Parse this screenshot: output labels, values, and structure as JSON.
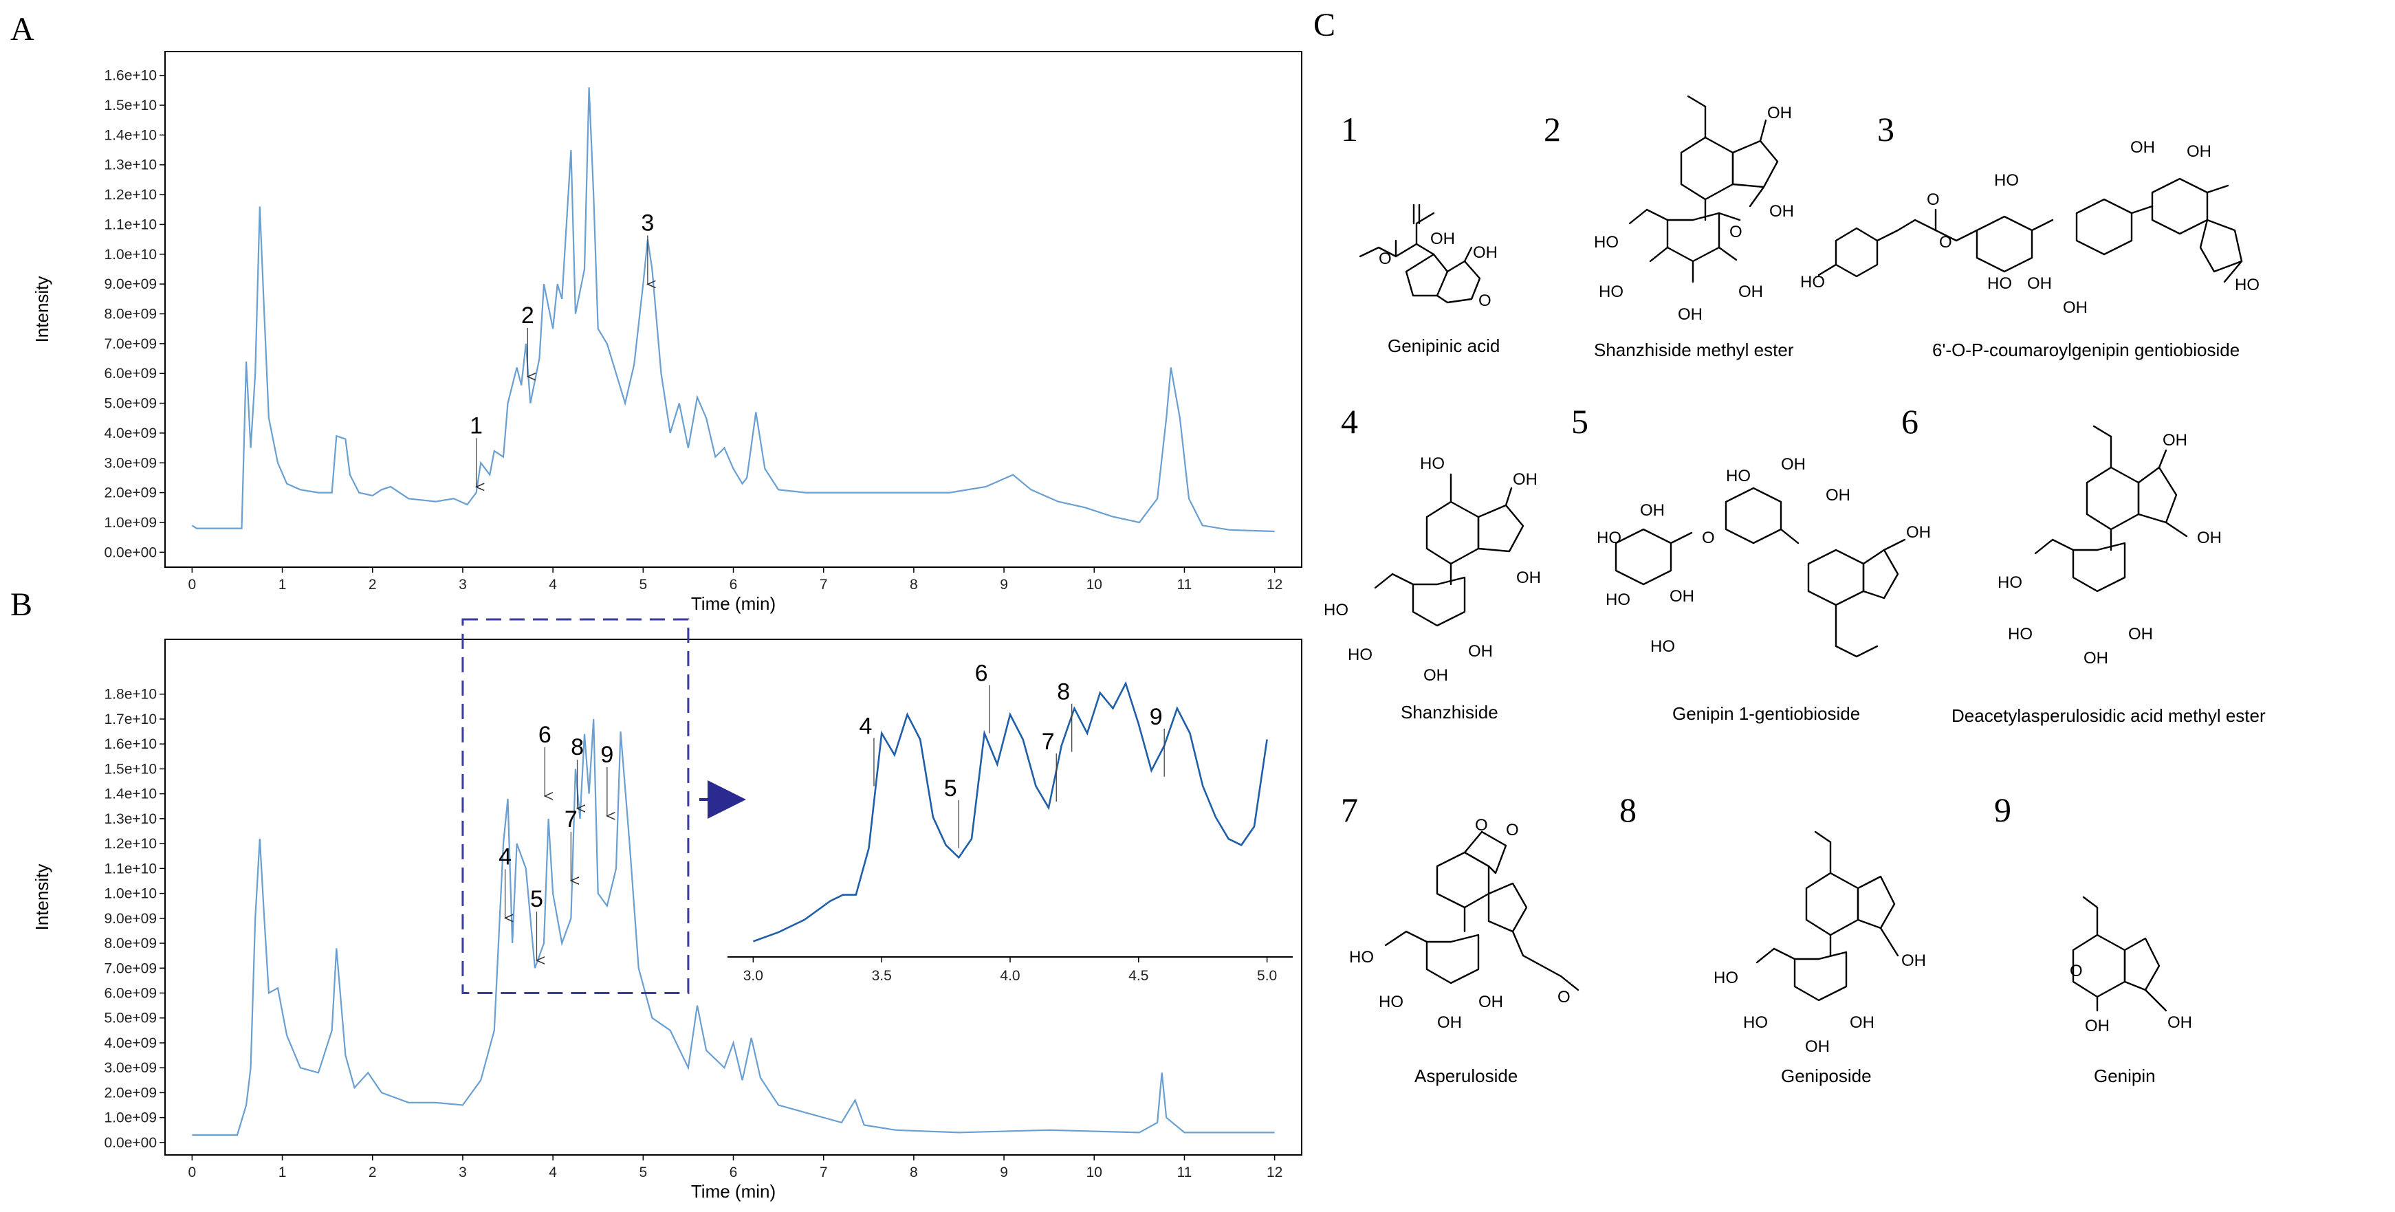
{
  "panels": {
    "a": "A",
    "b": "B",
    "c": "C"
  },
  "chart_data": [
    {
      "type": "line",
      "panel": "A",
      "xlabel": "Time (min)",
      "ylabel": "Intensity",
      "xlim": [
        -0.3,
        12.3
      ],
      "ylim": [
        -500000000.0,
        16800000000.0
      ],
      "xticks": [
        "0",
        "1",
        "2",
        "3",
        "4",
        "5",
        "6",
        "7",
        "8",
        "9",
        "10",
        "11",
        "12"
      ],
      "yticks": [
        "0.0e+00",
        "1.0e+09",
        "2.0e+09",
        "3.0e+09",
        "4.0e+09",
        "5.0e+09",
        "6.0e+09",
        "7.0e+09",
        "8.0e+09",
        "9.0e+09",
        "1.0e+10",
        "1.1e+10",
        "1.2e+10",
        "1.3e+10",
        "1.4e+10",
        "1.5e+10",
        "1.6e+10"
      ],
      "grid": false,
      "series": [
        {
          "values": [
            [
              0,
              900000000.0
            ],
            [
              0.05,
              800000000.0
            ],
            [
              0.55,
              800000000.0
            ],
            [
              0.6,
              6400000000.0
            ],
            [
              0.65,
              3500000000.0
            ],
            [
              0.7,
              6000000000.0
            ],
            [
              0.75,
              11600000000.0
            ],
            [
              0.8,
              8000000000.0
            ],
            [
              0.85,
              4500000000.0
            ],
            [
              0.95,
              3000000000.0
            ],
            [
              1.05,
              2300000000.0
            ],
            [
              1.2,
              2100000000.0
            ],
            [
              1.4,
              2000000000.0
            ],
            [
              1.55,
              2000000000.0
            ],
            [
              1.6,
              3900000000.0
            ],
            [
              1.7,
              3800000000.0
            ],
            [
              1.75,
              2600000000.0
            ],
            [
              1.85,
              2000000000.0
            ],
            [
              2,
              1900000000.0
            ],
            [
              2.1,
              2100000000.0
            ],
            [
              2.2,
              2200000000.0
            ],
            [
              2.4,
              1800000000.0
            ],
            [
              2.7,
              1700000000.0
            ],
            [
              2.9,
              1800000000.0
            ],
            [
              3.05,
              1600000000.0
            ],
            [
              3.15,
              2000000000.0
            ],
            [
              3.2,
              3000000000.0
            ],
            [
              3.3,
              2600000000.0
            ],
            [
              3.35,
              3400000000.0
            ],
            [
              3.45,
              3200000000.0
            ],
            [
              3.5,
              5000000000.0
            ],
            [
              3.6,
              6200000000.0
            ],
            [
              3.65,
              5600000000.0
            ],
            [
              3.7,
              7000000000.0
            ],
            [
              3.75,
              5000000000.0
            ],
            [
              3.85,
              6500000000.0
            ],
            [
              3.9,
              9000000000.0
            ],
            [
              4,
              7500000000.0
            ],
            [
              4.05,
              9000000000.0
            ],
            [
              4.1,
              8500000000.0
            ],
            [
              4.2,
              13500000000.0
            ],
            [
              4.25,
              8000000000.0
            ],
            [
              4.35,
              9500000000.0
            ],
            [
              4.4,
              15600000000.0
            ],
            [
              4.45,
              12000000000.0
            ],
            [
              4.5,
              7500000000.0
            ],
            [
              4.6,
              7000000000.0
            ],
            [
              4.7,
              6000000000.0
            ],
            [
              4.8,
              5000000000.0
            ],
            [
              4.9,
              6300000000.0
            ],
            [
              5,
              9000000000.0
            ],
            [
              5.05,
              10500000000.0
            ],
            [
              5.1,
              9500000000.0
            ],
            [
              5.2,
              6000000000.0
            ],
            [
              5.3,
              4000000000.0
            ],
            [
              5.4,
              5000000000.0
            ],
            [
              5.5,
              3500000000.0
            ],
            [
              5.6,
              5200000000.0
            ],
            [
              5.7,
              4500000000.0
            ],
            [
              5.8,
              3200000000.0
            ],
            [
              5.9,
              3500000000.0
            ],
            [
              6,
              2800000000.0
            ],
            [
              6.1,
              2300000000.0
            ],
            [
              6.15,
              2500000000.0
            ],
            [
              6.25,
              4700000000.0
            ],
            [
              6.35,
              2800000000.0
            ],
            [
              6.5,
              2100000000.0
            ],
            [
              6.8,
              2000000000.0
            ],
            [
              7.2,
              2000000000.0
            ],
            [
              7.6,
              2000000000.0
            ],
            [
              8,
              2000000000.0
            ],
            [
              8.4,
              2000000000.0
            ],
            [
              8.8,
              2200000000.0
            ],
            [
              9.1,
              2600000000.0
            ],
            [
              9.3,
              2100000000.0
            ],
            [
              9.6,
              1700000000.0
            ],
            [
              9.9,
              1500000000.0
            ],
            [
              10.2,
              1200000000.0
            ],
            [
              10.5,
              1000000000.0
            ],
            [
              10.7,
              1800000000.0
            ],
            [
              10.8,
              4500000000.0
            ],
            [
              10.85,
              6200000000.0
            ],
            [
              10.95,
              4500000000.0
            ],
            [
              11.05,
              1800000000.0
            ],
            [
              11.2,
              900000000.0
            ],
            [
              11.5,
              750000000.0
            ],
            [
              12,
              700000000.0
            ]
          ]
        }
      ],
      "annotations": [
        {
          "label": "1",
          "x": 3.15,
          "y": 2100000000.0
        },
        {
          "label": "2",
          "x": 3.72,
          "y": 5800000000.0
        },
        {
          "label": "3",
          "x": 5.05,
          "y": 8900000000.0
        }
      ]
    },
    {
      "type": "line",
      "panel": "B",
      "xlabel": "Time (min)",
      "ylabel": "Intensity",
      "xlim": [
        -0.3,
        12.3
      ],
      "ylim": [
        -500000000.0,
        20200000000.0
      ],
      "xticks": [
        "0",
        "1",
        "2",
        "3",
        "4",
        "5",
        "6",
        "7",
        "8",
        "9",
        "10",
        "11",
        "12"
      ],
      "yticks": [
        "0.0e+00",
        "1.0e+09",
        "2.0e+09",
        "3.0e+09",
        "4.0e+09",
        "5.0e+09",
        "6.0e+09",
        "7.0e+09",
        "8.0e+09",
        "9.0e+09",
        "1.0e+10",
        "1.1e+10",
        "1.2e+10",
        "1.3e+10",
        "1.4e+10",
        "1.5e+10",
        "1.6e+10",
        "1.7e+10",
        "1.8e+10"
      ],
      "grid": false,
      "series": [
        {
          "values": [
            [
              0,
              300000000.0
            ],
            [
              0.5,
              300000000.0
            ],
            [
              0.6,
              1500000000.0
            ],
            [
              0.65,
              3000000000.0
            ],
            [
              0.7,
              9000000000.0
            ],
            [
              0.75,
              12200000000.0
            ],
            [
              0.8,
              9000000000.0
            ],
            [
              0.85,
              6000000000.0
            ],
            [
              0.95,
              6200000000.0
            ],
            [
              1.05,
              4300000000.0
            ],
            [
              1.2,
              3000000000.0
            ],
            [
              1.4,
              2800000000.0
            ],
            [
              1.55,
              4500000000.0
            ],
            [
              1.6,
              7800000000.0
            ],
            [
              1.7,
              3500000000.0
            ],
            [
              1.8,
              2200000000.0
            ],
            [
              1.95,
              2800000000.0
            ],
            [
              2.1,
              2000000000.0
            ],
            [
              2.4,
              1600000000.0
            ],
            [
              2.7,
              1600000000.0
            ],
            [
              3.0,
              1500000000.0
            ],
            [
              3.2,
              2500000000.0
            ],
            [
              3.35,
              4500000000.0
            ],
            [
              3.45,
              12000000000.0
            ],
            [
              3.5,
              13800000000.0
            ],
            [
              3.55,
              8000000000.0
            ],
            [
              3.6,
              12000000000.0
            ],
            [
              3.7,
              11000000000.0
            ],
            [
              3.8,
              7000000000.0
            ],
            [
              3.9,
              8000000000.0
            ],
            [
              3.95,
              13000000000.0
            ],
            [
              4.0,
              10000000000.0
            ],
            [
              4.1,
              8000000000.0
            ],
            [
              4.2,
              9000000000.0
            ],
            [
              4.25,
              15000000000.0
            ],
            [
              4.3,
              13000000000.0
            ],
            [
              4.35,
              16400000000.0
            ],
            [
              4.4,
              14000000000.0
            ],
            [
              4.45,
              17000000000.0
            ],
            [
              4.5,
              10000000000.0
            ],
            [
              4.6,
              9500000000.0
            ],
            [
              4.7,
              11000000000.0
            ],
            [
              4.75,
              16500000000.0
            ],
            [
              4.85,
              12000000000.0
            ],
            [
              4.95,
              7000000000.0
            ],
            [
              5.1,
              5000000000.0
            ],
            [
              5.3,
              4500000000.0
            ],
            [
              5.5,
              3000000000.0
            ],
            [
              5.6,
              5500000000.0
            ],
            [
              5.7,
              3700000000.0
            ],
            [
              5.9,
              3000000000.0
            ],
            [
              6,
              4000000000.0
            ],
            [
              6.1,
              2500000000.0
            ],
            [
              6.2,
              4200000000.0
            ],
            [
              6.3,
              2600000000.0
            ],
            [
              6.5,
              1500000000.0
            ],
            [
              6.8,
              1200000000.0
            ],
            [
              7.2,
              800000000.0
            ],
            [
              7.35,
              1700000000.0
            ],
            [
              7.45,
              700000000.0
            ],
            [
              7.8,
              500000000.0
            ],
            [
              8.5,
              400000000.0
            ],
            [
              9.5,
              500000000.0
            ],
            [
              10.5,
              400000000.0
            ],
            [
              10.7,
              800000000.0
            ],
            [
              10.75,
              2800000000.0
            ],
            [
              10.8,
              1000000000.0
            ],
            [
              11,
              400000000.0
            ],
            [
              12,
              400000000.0
            ]
          ]
        }
      ],
      "annotations": [
        {
          "label": "4",
          "x": 3.47,
          "y": 8900000000.0
        },
        {
          "label": "5",
          "x": 3.82,
          "y": 7200000000.0
        },
        {
          "label": "6",
          "x": 3.91,
          "y": 13800000000.0
        },
        {
          "label": "7",
          "x": 4.2,
          "y": 10400000000.0
        },
        {
          "label": "8",
          "x": 4.27,
          "y": 13300000000.0
        },
        {
          "label": "9",
          "x": 4.6,
          "y": 13000000000.0
        }
      ],
      "zoom_box": {
        "x": [
          3.0,
          5.5
        ],
        "y": [
          6000000000.0,
          21000000000.0
        ]
      }
    },
    {
      "type": "line",
      "panel": "B-inset",
      "xlim": [
        2.9,
        5.1
      ],
      "ylim": [
        0,
        1
      ],
      "xticks": [
        "3.0",
        "3.5",
        "4.0",
        "4.5",
        "5.0"
      ],
      "series": [
        {
          "values": [
            [
              3.0,
              0.05
            ],
            [
              3.1,
              0.08
            ],
            [
              3.2,
              0.12
            ],
            [
              3.3,
              0.18
            ],
            [
              3.35,
              0.2
            ],
            [
              3.4,
              0.2
            ],
            [
              3.45,
              0.35
            ],
            [
              3.5,
              0.72
            ],
            [
              3.55,
              0.65
            ],
            [
              3.6,
              0.78
            ],
            [
              3.65,
              0.7
            ],
            [
              3.7,
              0.45
            ],
            [
              3.75,
              0.36
            ],
            [
              3.8,
              0.32
            ],
            [
              3.85,
              0.38
            ],
            [
              3.9,
              0.72
            ],
            [
              3.95,
              0.62
            ],
            [
              4.0,
              0.78
            ],
            [
              4.05,
              0.7
            ],
            [
              4.1,
              0.55
            ],
            [
              4.15,
              0.48
            ],
            [
              4.2,
              0.68
            ],
            [
              4.25,
              0.8
            ],
            [
              4.3,
              0.72
            ],
            [
              4.35,
              0.85
            ],
            [
              4.4,
              0.8
            ],
            [
              4.45,
              0.88
            ],
            [
              4.5,
              0.75
            ],
            [
              4.55,
              0.6
            ],
            [
              4.6,
              0.68
            ],
            [
              4.65,
              0.8
            ],
            [
              4.7,
              0.72
            ],
            [
              4.75,
              0.55
            ],
            [
              4.8,
              0.45
            ],
            [
              4.85,
              0.38
            ],
            [
              4.9,
              0.36
            ],
            [
              4.95,
              0.42
            ],
            [
              5.0,
              0.7
            ]
          ]
        }
      ],
      "annotations": [
        {
          "label": "4",
          "x": 3.47,
          "y": 0.55
        },
        {
          "label": "5",
          "x": 3.8,
          "y": 0.35
        },
        {
          "label": "6",
          "x": 3.92,
          "y": 0.72
        },
        {
          "label": "7",
          "x": 4.18,
          "y": 0.5
        },
        {
          "label": "8",
          "x": 4.24,
          "y": 0.66
        },
        {
          "label": "9",
          "x": 4.6,
          "y": 0.58
        }
      ]
    }
  ],
  "compounds": [
    {
      "num": "1",
      "name": "Genipinic acid"
    },
    {
      "num": "2",
      "name": "Shanzhiside methyl ester"
    },
    {
      "num": "3",
      "name": "6'-O-P-coumaroylgenipin gentiobioside"
    },
    {
      "num": "4",
      "name": "Shanzhiside"
    },
    {
      "num": "5",
      "name": "Genipin 1-gentiobioside"
    },
    {
      "num": "6",
      "name": "Deacetylasperulosidic acid methyl ester"
    },
    {
      "num": "7",
      "name": "Asperuloside"
    },
    {
      "num": "8",
      "name": "Geniposide"
    },
    {
      "num": "9",
      "name": "Genipin"
    }
  ],
  "atoms": {
    "OH": "OH",
    "HO": "HO",
    "O": "O"
  }
}
